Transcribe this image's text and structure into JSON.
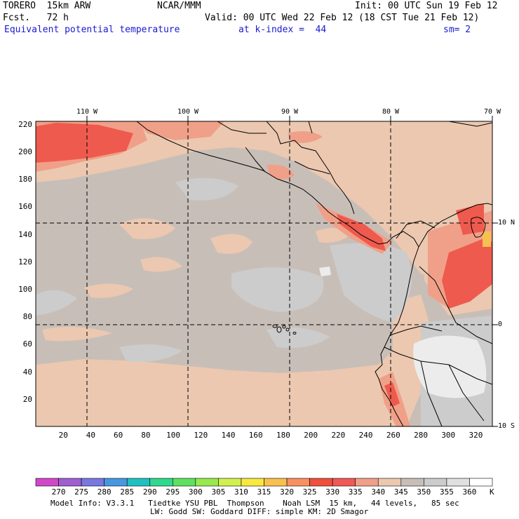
{
  "header": {
    "model": "TORERO  15km ARW",
    "org": "NCAR/MMM",
    "init": "Init: 00 UTC Sun 19 Feb 12",
    "fcst": "Fcst.   72 h",
    "valid": "Valid: 00 UTC Wed 22 Feb 12 (18 CST Tue 21 Feb 12)",
    "field": "Equivalent potential temperature",
    "level": "at k-index =  44",
    "smooth": "sm= 2"
  },
  "map": {
    "top_lon_labels": [
      "110 W",
      "100 W",
      "90 W",
      "80 W",
      "70 W"
    ],
    "right_lat_labels": [
      "10 N",
      "0",
      "10 S"
    ],
    "y_ticks": [
      "220",
      "200",
      "180",
      "160",
      "140",
      "120",
      "100",
      "80",
      "60",
      "40",
      "20"
    ],
    "x_ticks": [
      "20",
      "40",
      "60",
      "80",
      "100",
      "120",
      "140",
      "160",
      "180",
      "200",
      "220",
      "240",
      "260",
      "280",
      "300",
      "320"
    ],
    "colors": {
      "background_main": "#c8beb8",
      "warm_light": "#ecc8b0",
      "warm_mid": "#f0a088",
      "warm_hot": "#ef5a4e",
      "cool_grey": "#cccccc",
      "very_light": "#f0f0f0",
      "coast": "#000000",
      "grid": "#000000"
    }
  },
  "colorbar": {
    "labels": [
      "270",
      "275",
      "280",
      "285",
      "290",
      "295",
      "300",
      "305",
      "310",
      "315",
      "320",
      "325",
      "330",
      "335",
      "340",
      "345",
      "350",
      "355",
      "360"
    ],
    "unit": "K",
    "colors": [
      "#d048c8",
      "#a060d0",
      "#7878e0",
      "#4898e0",
      "#20c0c0",
      "#30d890",
      "#60e060",
      "#98e850",
      "#d0f050",
      "#f8e840",
      "#f8c050",
      "#f89060",
      "#f05040",
      "#f05858",
      "#f0a088",
      "#ecc8b0",
      "#c8beb8",
      "#cccccc",
      "#e0e0e0",
      "#ffffff"
    ]
  },
  "footer": {
    "line1": "Model Info: V3.3.1   Tiedtke YSU PBL  Thompson    Noah LSM  15 km,   44 levels,   85 sec",
    "line2": "LW: Godd SW: Goddard DIFF: simple KM: 2D Smagor"
  }
}
